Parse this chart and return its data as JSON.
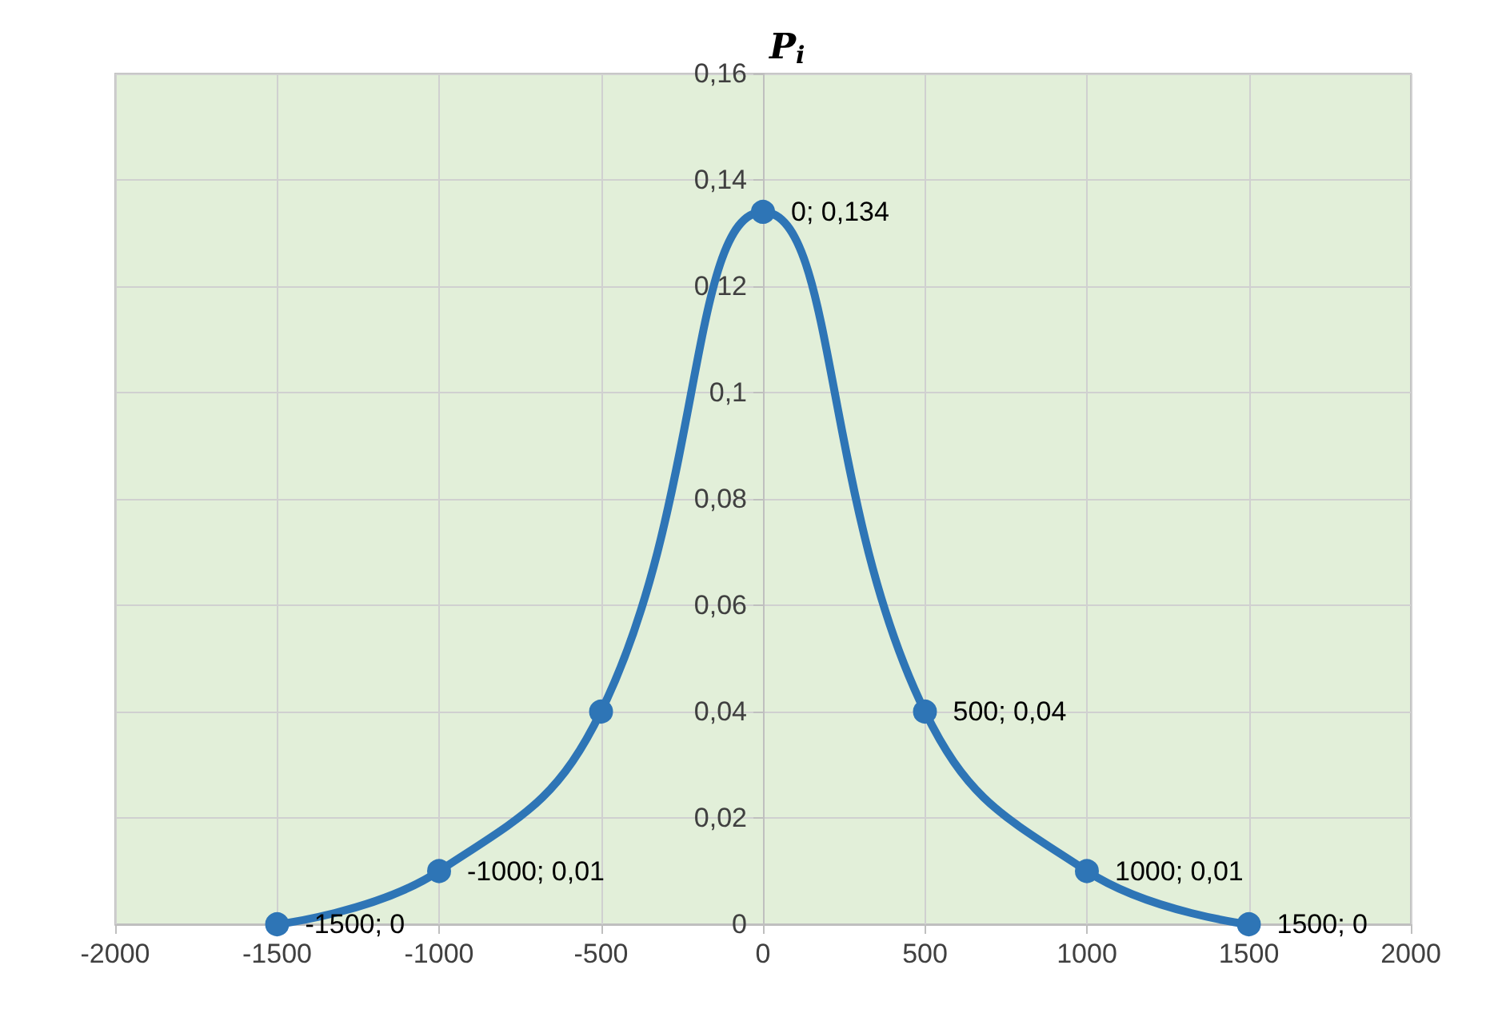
{
  "chart_data": {
    "type": "line",
    "ylabel": "P$_{i}$",
    "x": [
      -1500,
      -1000,
      -500,
      0,
      500,
      1000,
      1500
    ],
    "series": [
      {
        "color": "#2e75b6",
        "values": [
          0,
          0.01,
          0.04,
          0.134,
          0.04,
          0.01,
          0
        ],
        "value_labels": [
          "-1500; 0",
          "-1000; 0,01",
          null,
          "0; 0,134",
          "500; 0,04",
          "1000; 0,01",
          "1500; 0"
        ]
      }
    ],
    "xlim": [
      -2000,
      2000
    ],
    "xticks": [
      -2000,
      -1500,
      -1000,
      -500,
      0,
      500,
      1000,
      1500,
      2000
    ],
    "ylim": [
      0,
      0.16
    ],
    "yticks": [
      0,
      {
        "value": 0.02,
        "label": "0,02"
      },
      {
        "value": 0.04,
        "label": "0,04"
      },
      {
        "value": 0.06,
        "label": "0,06"
      },
      {
        "value": 0.08,
        "label": "0,08"
      },
      {
        "value": 0.1,
        "label": "0,1"
      },
      {
        "value": 0.12,
        "label": "0,12"
      },
      {
        "value": 0.14,
        "label": "0,14"
      },
      {
        "value": 0.16,
        "label": "0,16"
      }
    ],
    "grid": true,
    "marker": "circle",
    "line_style": "solid"
  }
}
